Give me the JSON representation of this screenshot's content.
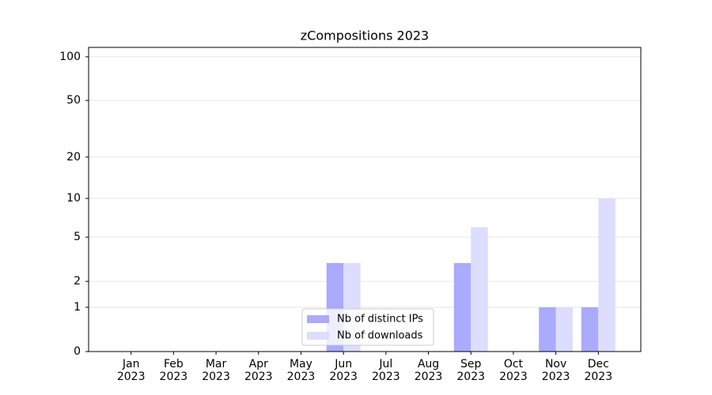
{
  "chart_data": {
    "type": "bar",
    "title": "zCompositions 2023",
    "categories": [
      "Jan\n2023",
      "Feb\n2023",
      "Mar\n2023",
      "Apr\n2023",
      "May\n2023",
      "Jun\n2023",
      "Jul\n2023",
      "Aug\n2023",
      "Sep\n2023",
      "Oct\n2023",
      "Nov\n2023",
      "Dec\n2023"
    ],
    "series": [
      {
        "name": "Nb of distinct IPs",
        "color": "#aaaaff",
        "values": [
          0,
          0,
          0,
          0,
          0,
          3,
          0,
          0,
          3,
          0,
          1,
          1
        ]
      },
      {
        "name": "Nb of downloads",
        "color": "#ddddff",
        "values": [
          0,
          0,
          0,
          0,
          0,
          3,
          0,
          0,
          6,
          0,
          1,
          10
        ]
      }
    ],
    "yscale": "log1p",
    "ylim": [
      0,
      116
    ],
    "yticks": [
      0,
      1,
      2,
      5,
      10,
      20,
      50,
      100
    ],
    "grid": true,
    "legend": "lower center"
  }
}
